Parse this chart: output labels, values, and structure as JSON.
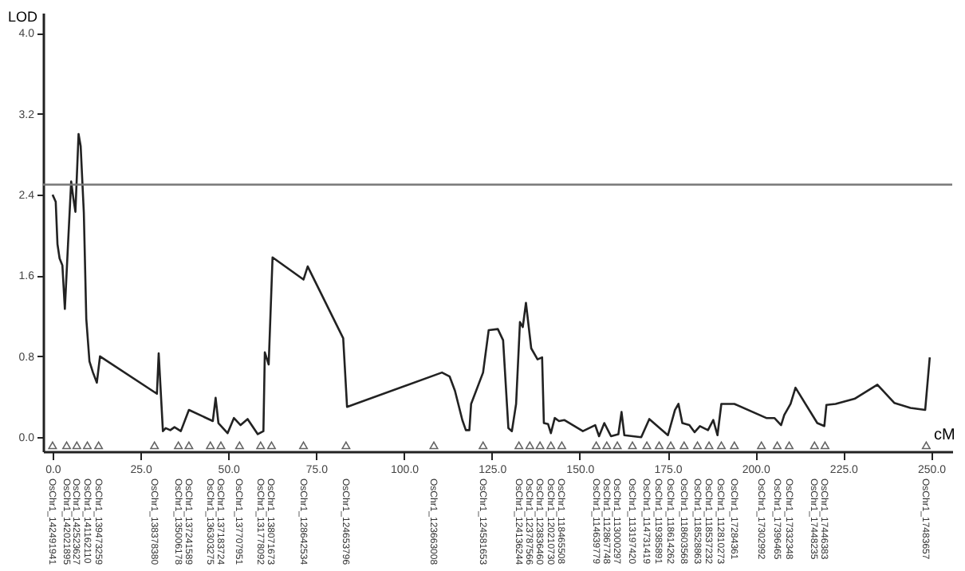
{
  "chart_data": {
    "type": "line",
    "xlabel": "cM",
    "ylabel": "LOD",
    "xlim": [
      -2.7,
      256
    ],
    "ylim": [
      -0.14,
      4.2
    ],
    "xticks": [
      {
        "value": 0,
        "label": "0.0"
      },
      {
        "value": 25,
        "label": "25.0"
      },
      {
        "value": 50,
        "label": "50.0"
      },
      {
        "value": 75,
        "label": "75.0"
      },
      {
        "value": 100,
        "label": "100.0"
      },
      {
        "value": 125,
        "label": "125.0"
      },
      {
        "value": 150,
        "label": "150.0"
      },
      {
        "value": 175,
        "label": "175.0"
      },
      {
        "value": 200,
        "label": "200.0"
      },
      {
        "value": 225,
        "label": "225.0"
      },
      {
        "value": 250,
        "label": "250.0"
      }
    ],
    "yticks": [
      {
        "value": 0,
        "label": "0.0"
      },
      {
        "value": 0.8,
        "label": "0.8"
      },
      {
        "value": 1.6,
        "label": "1.6"
      },
      {
        "value": 2.4,
        "label": "2.4"
      },
      {
        "value": 3.2,
        "label": "3.2"
      },
      {
        "value": 4.0,
        "label": "4.0"
      }
    ],
    "grid": false,
    "ref_lines": [
      {
        "axis": "y",
        "value": 2.5,
        "color": "#777777"
      }
    ],
    "series": [
      {
        "color": "#222222",
        "marker": "none",
        "line_style": "solid",
        "x": [
          0,
          0.9,
          1.4,
          2.0,
          2.8,
          3.5,
          4.4,
          5.3,
          5.9,
          6.5,
          7.4,
          8.0,
          8.9,
          9.6,
          10.5,
          11.5,
          12.6,
          13.5,
          29.7,
          30.2,
          31.4,
          32.2,
          33.5,
          34.7,
          36.5,
          38.8,
          45.6,
          46.4,
          47.2,
          49.8,
          51.6,
          53.5,
          55.5,
          58.4,
          60.0,
          60.4,
          61.5,
          62.6,
          71.4,
          72.6,
          82.7,
          83.8,
          110.8,
          113.0,
          114.5,
          116.6,
          117.6,
          118.6,
          119.1,
          122.5,
          124.1,
          126.7,
          128.2,
          129.7,
          130.7,
          131.9,
          133.0,
          133.8,
          134.7,
          136.2,
          138.0,
          139.3,
          139.8,
          141.0,
          141.8,
          142.9,
          144.1,
          145.6,
          150.9,
          154.4,
          155.5,
          157.0,
          158.9,
          161.0,
          161.9,
          162.7,
          167.5,
          169.8,
          175.1,
          177.1,
          178.1,
          179.2,
          181.2,
          182.7,
          184.2,
          186.5,
          188.0,
          189.2,
          190.3,
          194.0,
          203.1,
          205.4,
          207.3,
          208.2,
          210.0,
          211.4,
          217.6,
          219.6,
          220.2,
          222.8,
          228.2,
          234.7,
          239.5,
          244.1,
          248.3,
          249.6
        ],
        "values": [
          2.4,
          2.33,
          1.91,
          1.77,
          1.7,
          1.27,
          1.91,
          2.53,
          2.37,
          2.23,
          3.0,
          2.88,
          2.22,
          1.17,
          0.75,
          0.64,
          0.54,
          0.8,
          0.43,
          0.83,
          0.06,
          0.09,
          0.07,
          0.1,
          0.06,
          0.27,
          0.16,
          0.39,
          0.14,
          0.04,
          0.19,
          0.12,
          0.18,
          0.03,
          0.06,
          0.84,
          0.72,
          1.78,
          1.56,
          1.69,
          0.98,
          0.3,
          0.64,
          0.6,
          0.46,
          0.17,
          0.07,
          0.07,
          0.33,
          0.64,
          1.06,
          1.07,
          0.96,
          0.09,
          0.06,
          0.33,
          1.14,
          1.09,
          1.33,
          0.88,
          0.77,
          0.79,
          0.14,
          0.13,
          0.04,
          0.19,
          0.16,
          0.17,
          0.06,
          0.12,
          0.01,
          0.14,
          0.01,
          0.03,
          0.25,
          0.02,
          0.0,
          0.18,
          0.02,
          0.27,
          0.33,
          0.14,
          0.12,
          0.05,
          0.11,
          0.07,
          0.17,
          0.02,
          0.33,
          0.33,
          0.19,
          0.19,
          0.12,
          0.22,
          0.33,
          0.49,
          0.14,
          0.11,
          0.32,
          0.33,
          0.38,
          0.52,
          0.34,
          0.29,
          0.27,
          0.79
        ]
      },
      {
        "type": "scatter",
        "color": "#222222",
        "marker": "triangle",
        "x": [
          0,
          4.0,
          6.9,
          9.9,
          13.1,
          29.0,
          35.8,
          38.8,
          44.9,
          47.9,
          53.2,
          59.2,
          62.3,
          71.4,
          83.5,
          108.5,
          122.5,
          132.7,
          135.8,
          138.7,
          141.8,
          144.9,
          154.7,
          157.7,
          160.7,
          165.0,
          169.1,
          172.6,
          175.9,
          179.7,
          183.5,
          186.8,
          190.3,
          194.0,
          201.7,
          206.2,
          209.6,
          216.8,
          219.8,
          248.6
        ],
        "values": [
          -0.08,
          -0.08,
          -0.08,
          -0.08,
          -0.08,
          -0.08,
          -0.08,
          -0.08,
          -0.08,
          -0.08,
          -0.08,
          -0.08,
          -0.08,
          -0.08,
          -0.08,
          -0.08,
          -0.08,
          -0.08,
          -0.08,
          -0.08,
          -0.08,
          -0.08,
          -0.08,
          -0.08,
          -0.08,
          -0.08,
          -0.08,
          -0.08,
          -0.08,
          -0.08,
          -0.08,
          -0.08,
          -0.08,
          -0.08,
          -0.08,
          -0.08,
          -0.08,
          -0.08,
          -0.08,
          -0.08
        ],
        "value_labels": [
          "OsChr1_142491941",
          "OsChr1_142021895",
          "OsChr1_142523627",
          "OsChr1_141162110",
          "OsChr1_139473259",
          "OsChr1_138378380",
          "OsChr1_135006178",
          "OsChr1_137241589",
          "OsChr1_136303275",
          "OsChr1_137183724",
          "OsChr1_137707951",
          "OsChr1_131778092",
          "OsChr1_138071673",
          "OsChr1_128642534",
          "OsChr1_124653796",
          "OsChr1_123663008",
          "OsChr1_124581653",
          "OsChr1_124136244",
          "OsChr1_123787566",
          "OsChr1_123836460",
          "OsChr1_120210730",
          "OsChr1_118465508",
          "OsChr1_114639779",
          "OsChr1_112867748",
          "OsChr1_113000297",
          "OsChr1_113197420",
          "OsChr1_114731419",
          "OsChr1_119385891",
          "OsChr1_118614262",
          "OsChr1_118603568",
          "OsChr1_118528863",
          "OsChr1_118537232",
          "OsChr1_112810273",
          "OsChr1_17284361",
          "OsChr1_17302992",
          "OsChr1_17396465",
          "OsChr1_17332348",
          "OsChr1_17448235",
          "OsChr1_17446383",
          "OsChr1_17483657"
        ]
      }
    ]
  }
}
